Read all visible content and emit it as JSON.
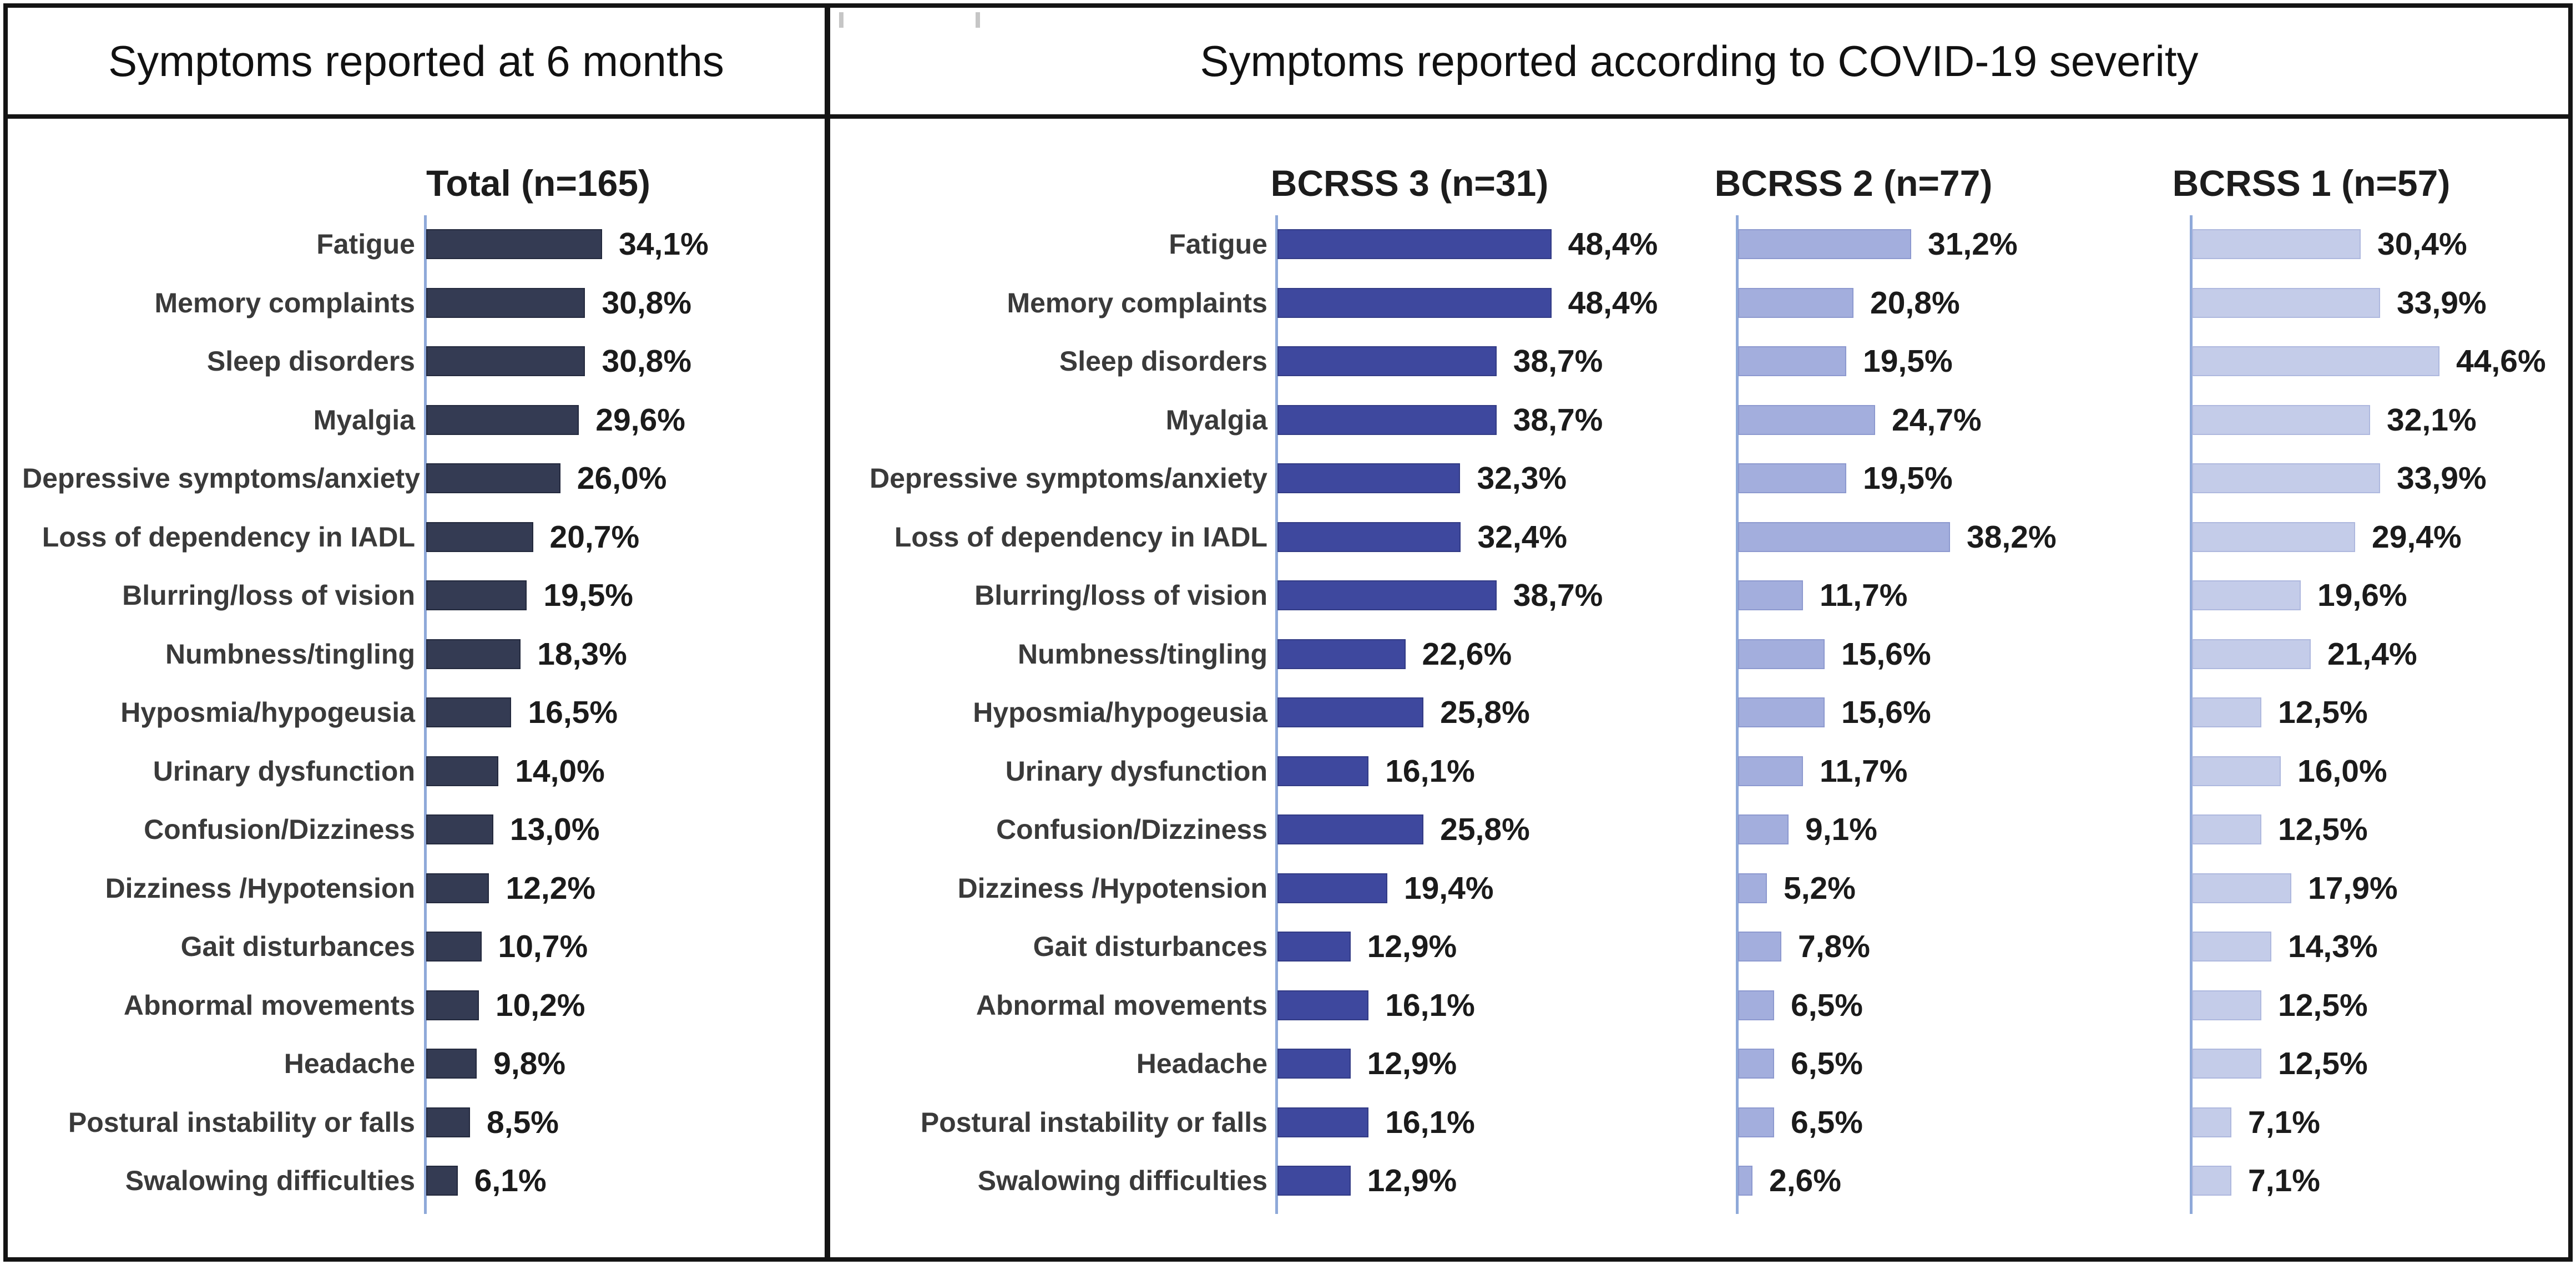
{
  "header": {
    "left": "Symptoms reported at 6 months",
    "right": "Symptoms reported according to COVID-19 severity"
  },
  "chart_data": {
    "type": "bar",
    "orientation": "horizontal",
    "grid": false,
    "legend_position": "none",
    "xlim": [
      0,
      55
    ],
    "decimal_separator": ",",
    "axis_line_color": "#8fa9d9",
    "categories": [
      "Fatigue",
      "Memory complaints",
      "Sleep disorders",
      "Myalgia",
      "Depressive symptoms/anxiety",
      "Loss of dependency in IADL",
      "Blurring/loss of vision",
      "Numbness/tingling",
      "Hyposmia/hypogeusia",
      "Urinary dysfunction",
      "Confusion/Dizziness",
      "Dizziness /Hypotension",
      "Gait disturbances",
      "Abnormal movements",
      "Headache",
      "Postural instability or falls",
      "Swalowing difficulties"
    ],
    "series": [
      {
        "name": "Total (n=165)",
        "bar_color": "#343b53",
        "bar_border_color": "#23293d",
        "values": [
          34.1,
          30.8,
          30.8,
          29.6,
          26.0,
          20.7,
          19.5,
          18.3,
          16.5,
          14.0,
          13.0,
          12.2,
          10.7,
          10.2,
          9.8,
          8.5,
          6.1
        ],
        "value_labels": [
          "34,1%",
          "30,8%",
          "30,8%",
          "29,6%",
          "26,0%",
          "20,7%",
          "19,5%",
          "18,3%",
          "16,5%",
          "14,0%",
          "13,0%",
          "12,2%",
          "10,7%",
          "10,2%",
          "9,8%",
          "8,5%",
          "6,1%"
        ]
      },
      {
        "name": "BCRSS 3 (n=31)",
        "bar_color": "#3e489e",
        "bar_border_color": "#323b85",
        "values": [
          48.4,
          48.4,
          38.7,
          38.7,
          32.3,
          32.4,
          38.7,
          22.6,
          25.8,
          16.1,
          25.8,
          19.4,
          12.9,
          16.1,
          12.9,
          16.1,
          12.9
        ],
        "value_labels": [
          "48,4%",
          "48,4%",
          "38,7%",
          "38,7%",
          "32,3%",
          "32,4%",
          "38,7%",
          "22,6%",
          "25,8%",
          "16,1%",
          "25,8%",
          "19,4%",
          "12,9%",
          "16,1%",
          "12,9%",
          "16,1%",
          "12,9%"
        ]
      },
      {
        "name": "BCRSS 2 (n=77)",
        "bar_color": "#a3aedd",
        "bar_border_color": "#8d99cf",
        "values": [
          31.2,
          20.8,
          19.5,
          24.7,
          19.5,
          38.2,
          11.7,
          15.6,
          15.6,
          11.7,
          9.1,
          5.2,
          7.8,
          6.5,
          6.5,
          6.5,
          2.6
        ],
        "value_labels": [
          "31,2%",
          "20,8%",
          "19,5%",
          "24,7%",
          "19,5%",
          "38,2%",
          "11,7%",
          "15,6%",
          "15,6%",
          "11,7%",
          "9,1%",
          "5,2%",
          "7,8%",
          "6,5%",
          "6,5%",
          "6,5%",
          "2,6%"
        ]
      },
      {
        "name": "BCRSS 1 (n=57)",
        "bar_color": "#c4cce9",
        "bar_border_color": "#aeb8de",
        "values": [
          30.4,
          33.9,
          44.6,
          32.1,
          33.9,
          29.4,
          19.6,
          21.4,
          12.5,
          16.0,
          12.5,
          17.9,
          14.3,
          12.5,
          12.5,
          7.1,
          7.1
        ],
        "value_labels": [
          "30,4%",
          "33,9%",
          "44,6%",
          "32,1%",
          "33,9%",
          "29,4%",
          "19,6%",
          "21,4%",
          "12,5%",
          "16,0%",
          "12,5%",
          "17,9%",
          "14,3%",
          "12,5%",
          "12,5%",
          "7,1%",
          "7,1%"
        ]
      }
    ]
  }
}
